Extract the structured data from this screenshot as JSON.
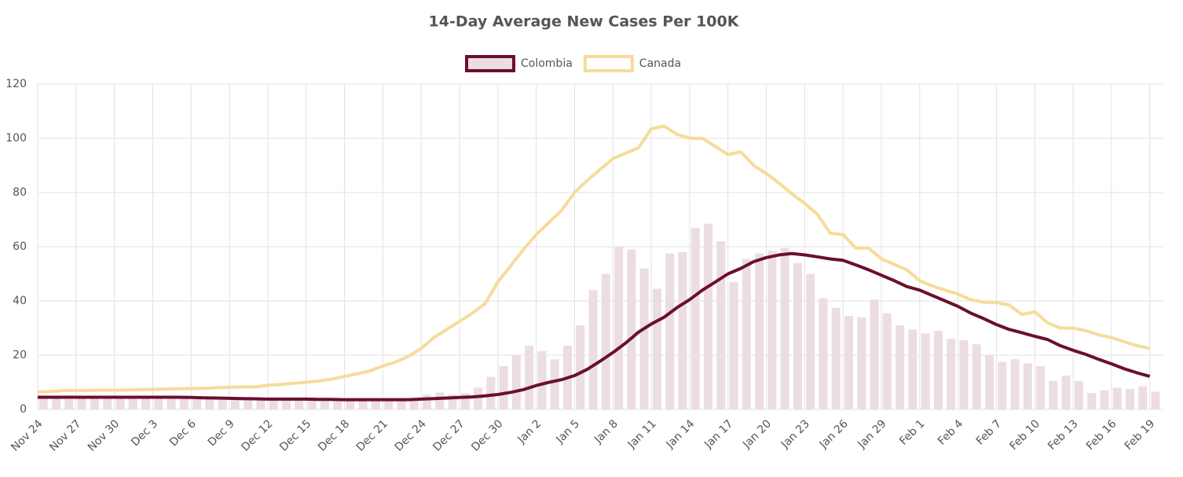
{
  "chart_data": {
    "type": "line",
    "title": "14-Day Average New Cases Per 100K",
    "categories": [
      "Nov 24",
      null,
      null,
      "Nov 27",
      null,
      null,
      "Nov 30",
      null,
      null,
      "Dec 3",
      null,
      null,
      "Dec 6",
      null,
      null,
      "Dec 9",
      null,
      null,
      "Dec 12",
      null,
      null,
      "Dec 15",
      null,
      null,
      "Dec 18",
      null,
      null,
      "Dec 21",
      null,
      null,
      "Dec 24",
      null,
      null,
      "Dec 27",
      null,
      null,
      "Dec 30",
      null,
      null,
      "Jan 2",
      null,
      null,
      "Jan 5",
      null,
      null,
      "Jan 8",
      null,
      null,
      "Jan 11",
      null,
      null,
      "Jan 14",
      null,
      null,
      "Jan 17",
      null,
      null,
      "Jan 20",
      null,
      null,
      "Jan 23",
      null,
      null,
      "Jan 26",
      null,
      null,
      "Jan 29",
      null,
      null,
      "Feb 1",
      null,
      null,
      "Feb 4",
      null,
      null,
      "Feb 7",
      null,
      null,
      "Feb 10",
      null,
      null,
      "Feb 13",
      null,
      null,
      "Feb 16",
      null,
      null,
      "Feb 19"
    ],
    "series": [
      {
        "name": "Colombia",
        "color": "#6b0f2f",
        "values": [
          4.5,
          4.5,
          4.5,
          4.5,
          4.5,
          4.5,
          4.5,
          4.5,
          4.5,
          4.5,
          4.5,
          4.5,
          4.4,
          4.3,
          4.2,
          4.1,
          4.0,
          3.9,
          3.8,
          3.8,
          3.8,
          3.8,
          3.7,
          3.7,
          3.6,
          3.6,
          3.6,
          3.6,
          3.6,
          3.6,
          3.8,
          4.0,
          4.2,
          4.4,
          4.6,
          5.0,
          5.5,
          6.3,
          7.3,
          8.8,
          10,
          11,
          12.5,
          14.8,
          17.8,
          21,
          24.5,
          28.5,
          31.5,
          34,
          37.5,
          40.5,
          44,
          47,
          50,
          52,
          54.5,
          56,
          57,
          57.5,
          57,
          56.3,
          55.5,
          55,
          53.3,
          51.5,
          49.5,
          47.5,
          45.3,
          44,
          42,
          40,
          38,
          35.5,
          33.5,
          31.3,
          29.5,
          28.3,
          27,
          25.8,
          23.5,
          21.8,
          20.3,
          18.5,
          16.8,
          15,
          13.5,
          12.2
        ],
        "bars": {
          "color": "#ecdde2",
          "values": [
            4,
            4.2,
            3.8,
            4.1,
            4,
            3.9,
            4.2,
            4,
            4.3,
            4.1,
            3.9,
            4,
            4.2,
            3.8,
            4,
            3.9,
            4.1,
            3.8,
            4,
            3.7,
            3.9,
            3.6,
            3.8,
            3.7,
            4,
            3.7,
            3.9,
            3.8,
            3.9,
            4,
            5.5,
            6.2,
            5.5,
            6,
            8,
            12,
            16,
            20,
            23.5,
            21.5,
            18.5,
            23.5,
            31,
            44,
            50,
            60,
            59,
            52,
            44.5,
            57.5,
            58,
            67,
            68.5,
            62,
            47,
            55.5,
            57.5,
            58.5,
            59.5,
            54,
            50,
            41,
            37.5,
            34.5,
            34,
            40.5,
            35.5,
            31,
            29.5,
            28,
            29,
            26,
            25.5,
            24,
            20,
            17.5,
            18.5,
            17,
            16,
            10.5,
            12.5,
            10.5,
            6,
            7,
            8,
            7.5,
            8.5,
            6.5
          ]
        }
      },
      {
        "name": "Canada",
        "color": "#f5dc9a",
        "values": [
          6.5,
          6.6,
          7,
          7,
          7,
          7.1,
          7.1,
          7.2,
          7.3,
          7.4,
          7.5,
          7.6,
          7.7,
          7.8,
          8.0,
          8.2,
          8.3,
          8.3,
          8.9,
          9.2,
          9.6,
          10,
          10.5,
          11.2,
          12.2,
          13.1,
          14.2,
          16,
          17.5,
          19.5,
          22.5,
          26.5,
          29.5,
          32.5,
          35.5,
          39,
          47,
          53,
          59,
          64.5,
          69,
          73.5,
          80,
          84.5,
          88.5,
          92.5,
          94.5,
          96.5,
          103.5,
          104.5,
          101.5,
          100,
          100,
          97,
          94,
          95,
          90,
          87,
          83.5,
          79.5,
          76,
          72,
          65,
          64.5,
          59.5,
          59.5,
          55.5,
          53.5,
          51.5,
          47.5,
          45.5,
          44,
          42.5,
          40.5,
          39.5,
          39.5,
          38.5,
          35,
          36,
          32,
          30,
          30,
          29,
          27.5,
          26.5,
          25,
          23.5,
          22.5
        ]
      }
    ],
    "ylim": [
      0,
      120
    ],
    "yticks": [
      0,
      20,
      40,
      60,
      80,
      100,
      120
    ],
    "grid": true
  }
}
